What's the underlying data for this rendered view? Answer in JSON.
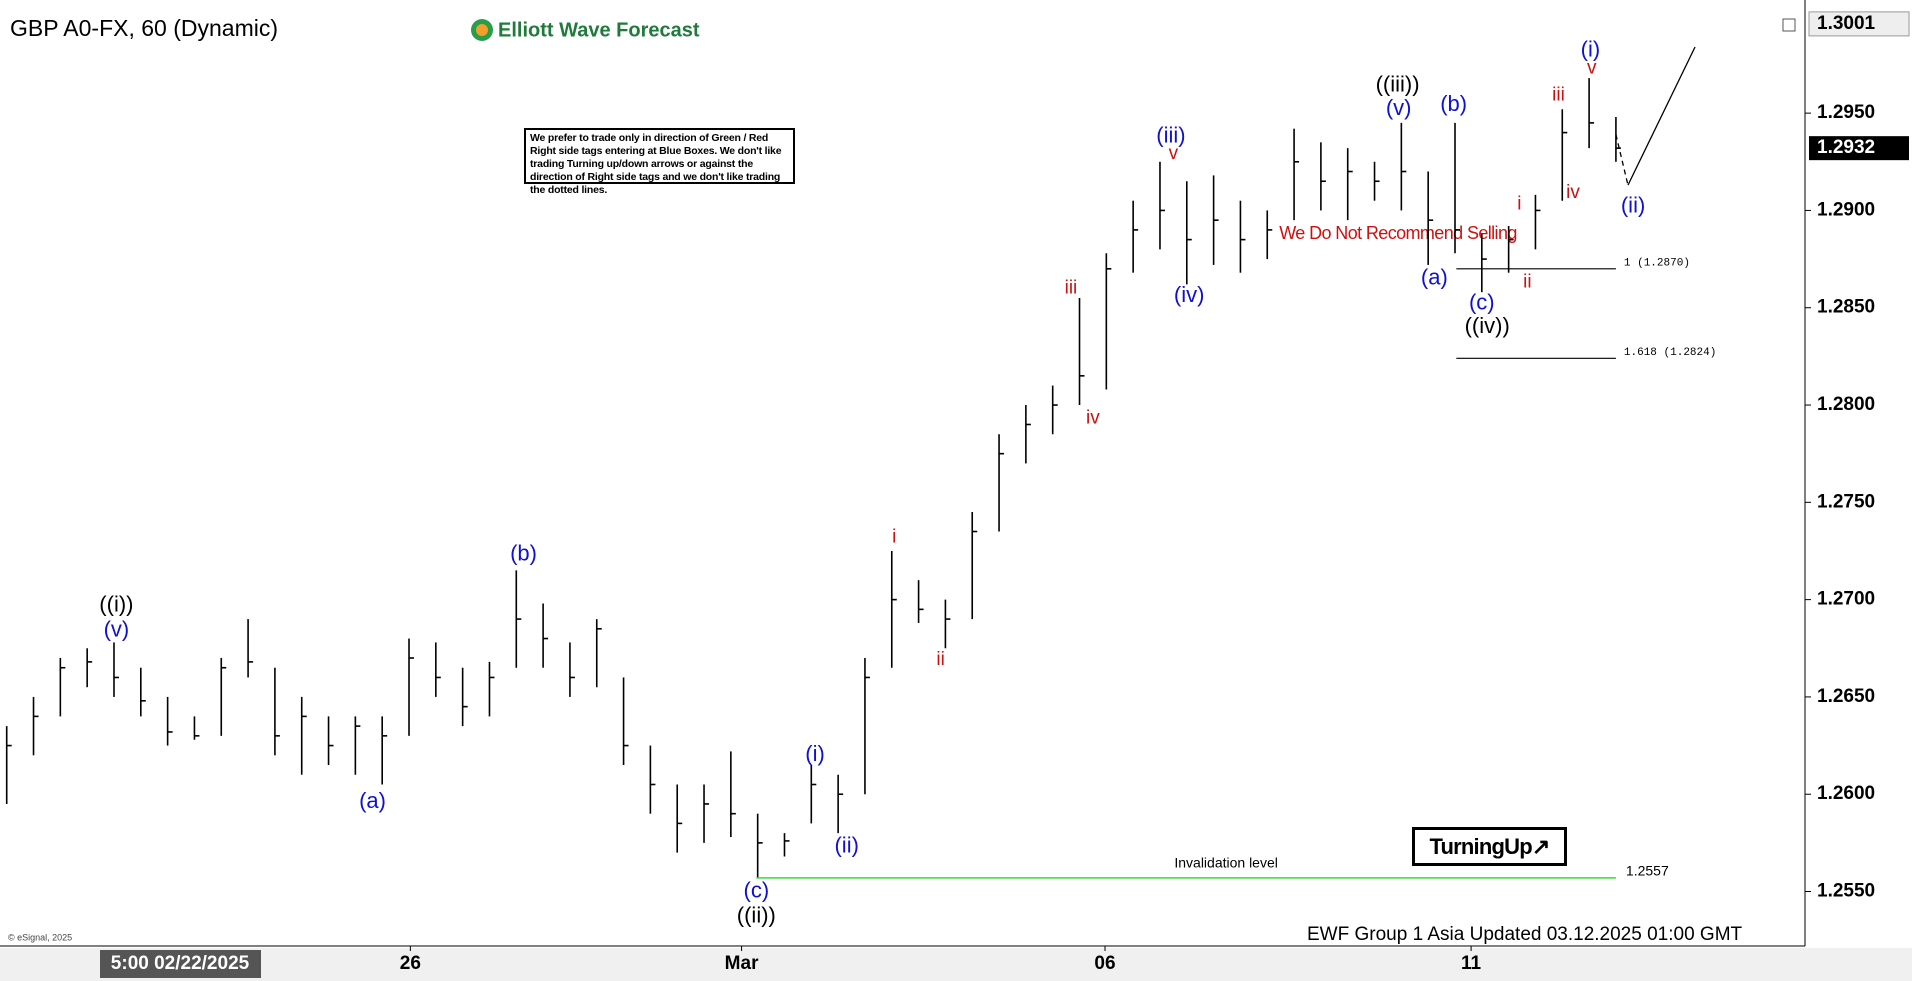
{
  "chart_data": {
    "type": "ohlc",
    "title": "GBP A0-FX, 60 (Dynamic)",
    "brand": "Elliott Wave Forecast",
    "note": "We prefer to trade only in direction of Green / Red Right side tags entering at Blue Boxes. We don't like trading Turning up/down arrows or against the direction of Right side tags and we don't like trading the dotted lines.",
    "signal": "TurningUp↗",
    "warning": "We Do Not Recommend Selling",
    "footer": "EWF Group 1 Asia Updated 03.12.2025 01:00 GMT",
    "copyright": "© eSignal, 2025",
    "start_label": "5:00 02/22/2025",
    "color": "#000000",
    "xlim": [
      -0.25,
      67.05
    ],
    "xticks": [
      {
        "value": 15.05,
        "label": "26"
      },
      {
        "value": 27.4,
        "label": "Mar"
      },
      {
        "value": 40.95,
        "label": "06"
      },
      {
        "value": 54.6,
        "label": "11"
      }
    ],
    "ylim": [
      1.2522,
      1.3003
    ],
    "yticks": [
      {
        "value": 1.255,
        "label": "1.2550"
      },
      {
        "value": 1.26,
        "label": "1.2600"
      },
      {
        "value": 1.265,
        "label": "1.2650"
      },
      {
        "value": 1.27,
        "label": "1.2700"
      },
      {
        "value": 1.275,
        "label": "1.2750"
      },
      {
        "value": 1.28,
        "label": "1.2800"
      },
      {
        "value": 1.285,
        "label": "1.2850"
      },
      {
        "value": 1.29,
        "label": "1.2900"
      },
      {
        "value": 1.295,
        "label": "1.2950"
      }
    ],
    "high_label": {
      "value": 1.3001,
      "label": "1.3001"
    },
    "last_label": {
      "value": 1.2932,
      "label": "1.2932"
    },
    "high": [
      1.2635,
      1.265,
      1.267,
      1.2675,
      1.2678,
      1.2665,
      1.265,
      1.264,
      1.267,
      1.269,
      1.2665,
      1.265,
      1.264,
      1.264,
      1.264,
      1.268,
      1.2678,
      1.2665,
      1.2668,
      1.2715,
      1.2698,
      1.2678,
      1.269,
      1.266,
      1.2625,
      1.2605,
      1.2605,
      1.2622,
      1.259,
      1.258,
      1.2615,
      1.261,
      1.267,
      1.2725,
      1.271,
      1.27,
      1.2745,
      1.2785,
      1.28,
      1.281,
      1.2855,
      1.2878,
      1.2905,
      1.2925,
      1.2915,
      1.2918,
      1.2905,
      1.29,
      1.2942,
      1.2935,
      1.2932,
      1.2925,
      1.2945,
      1.292,
      1.2945,
      1.2888,
      1.2892,
      1.2908,
      1.2952,
      1.2968,
      1.2948
    ],
    "low": [
      1.2595,
      1.262,
      1.264,
      1.2655,
      1.265,
      1.264,
      1.2625,
      1.2628,
      1.263,
      1.266,
      1.262,
      1.261,
      1.2615,
      1.261,
      1.2605,
      1.263,
      1.265,
      1.2635,
      1.264,
      1.2665,
      1.2665,
      1.265,
      1.2655,
      1.2615,
      1.259,
      1.257,
      1.2575,
      1.2578,
      1.2557,
      1.2568,
      1.2585,
      1.258,
      1.26,
      1.2665,
      1.2688,
      1.2675,
      1.269,
      1.2735,
      1.277,
      1.2785,
      1.28,
      1.2808,
      1.2868,
      1.288,
      1.2862,
      1.2872,
      1.2868,
      1.2875,
      1.2895,
      1.29,
      1.2895,
      1.2905,
      1.29,
      1.2872,
      1.2878,
      1.2858,
      1.2868,
      1.288,
      1.2905,
      1.2932,
      1.2925
    ],
    "close": [
      1.2625,
      1.264,
      1.2665,
      1.2668,
      1.266,
      1.2648,
      1.2632,
      1.263,
      1.2665,
      1.2668,
      1.263,
      1.264,
      1.2625,
      1.2635,
      1.263,
      1.267,
      1.266,
      1.2645,
      1.266,
      1.269,
      1.268,
      1.266,
      1.2685,
      1.2625,
      1.2605,
      1.2585,
      1.2595,
      1.259,
      1.2575,
      1.2576,
      1.2605,
      1.26,
      1.266,
      1.27,
      1.2695,
      1.269,
      1.2735,
      1.2775,
      1.279,
      1.28,
      1.2815,
      1.287,
      1.289,
      1.29,
      1.2885,
      1.2895,
      1.2885,
      1.289,
      1.2925,
      1.2915,
      1.292,
      1.2915,
      1.292,
      1.2895,
      1.289,
      1.2875,
      1.2885,
      1.29,
      1.294,
      1.2945,
      1.2932
    ],
    "annotations": [
      {
        "text": "((i))",
        "x": 4.09,
        "y": 1.2697,
        "color": "#000000"
      },
      {
        "text": "(v)",
        "x": 4.09,
        "y": 1.2684,
        "color": "#1010d0"
      },
      {
        "text": "(a)",
        "x": 13.64,
        "y": 1.2596,
        "color": "#1010d0"
      },
      {
        "text": "(b)",
        "x": 19.27,
        "y": 1.2723,
        "color": "#1010d0"
      },
      {
        "text": "(c)",
        "x": 27.95,
        "y": 1.255,
        "color": "#1010d0"
      },
      {
        "text": "((ii))",
        "x": 27.95,
        "y": 1.2537,
        "color": "#000000"
      },
      {
        "text": "(i)",
        "x": 30.14,
        "y": 1.262,
        "color": "#1010d0"
      },
      {
        "text": "(ii)",
        "x": 31.32,
        "y": 1.2573,
        "color": "#1010d0"
      },
      {
        "text": "i",
        "x": 33.09,
        "y": 1.2732,
        "color": "#cc1010"
      },
      {
        "text": "ii",
        "x": 34.82,
        "y": 1.2669,
        "color": "#cc1010"
      },
      {
        "text": "iii",
        "x": 39.68,
        "y": 1.286,
        "color": "#cc1010"
      },
      {
        "text": "iv",
        "x": 40.5,
        "y": 1.2793,
        "color": "#cc1010"
      },
      {
        "text": "(iii)",
        "x": 43.41,
        "y": 1.2938,
        "color": "#1010d0"
      },
      {
        "text": "v",
        "x": 43.5,
        "y": 1.2929,
        "color": "#cc1010"
      },
      {
        "text": "(iv)",
        "x": 44.09,
        "y": 1.2856,
        "color": "#1010d0"
      },
      {
        "text": "((iii))",
        "x": 51.86,
        "y": 1.2964,
        "color": "#000000"
      },
      {
        "text": "(v)",
        "x": 51.9,
        "y": 1.2952,
        "color": "#1010d0"
      },
      {
        "text": "(b)",
        "x": 53.95,
        "y": 1.2954,
        "color": "#1010d0"
      },
      {
        "text": "(a)",
        "x": 53.23,
        "y": 1.2865,
        "color": "#1010d0"
      },
      {
        "text": "(c)",
        "x": 55.0,
        "y": 1.2852,
        "color": "#1010d0"
      },
      {
        "text": "((iv))",
        "x": 55.2,
        "y": 1.284,
        "color": "#000000"
      },
      {
        "text": "i",
        "x": 56.4,
        "y": 1.2903,
        "color": "#cc1010"
      },
      {
        "text": "ii",
        "x": 56.7,
        "y": 1.2863,
        "color": "#cc1010"
      },
      {
        "text": "iii",
        "x": 57.86,
        "y": 1.2959,
        "color": "#cc1010"
      },
      {
        "text": "iv",
        "x": 58.4,
        "y": 1.2909,
        "color": "#cc1010"
      },
      {
        "text": "(i)",
        "x": 59.05,
        "y": 1.2982,
        "color": "#1010d0"
      },
      {
        "text": "v",
        "x": 59.1,
        "y": 1.2973,
        "color": "#cc1010"
      },
      {
        "text": "(ii)",
        "x": 60.64,
        "y": 1.2902,
        "color": "#1010d0"
      }
    ],
    "fib_levels": [
      {
        "value": 1.287,
        "label": "1 (1.2870)",
        "x": [
          54.05,
          60
        ]
      },
      {
        "value": 1.2824,
        "label": "1.618 (1.2824)",
        "x": [
          54.05,
          60
        ]
      }
    ],
    "invalidation": {
      "value": 1.2557,
      "label": "1.2557",
      "text": "Invalidation level",
      "x": [
        27.95,
        60
      ],
      "color": "#33dd33"
    },
    "projection": {
      "x": [
        60,
        60.45,
        62.95
      ],
      "y": [
        1.2939,
        1.2913,
        1.2984
      ]
    }
  }
}
